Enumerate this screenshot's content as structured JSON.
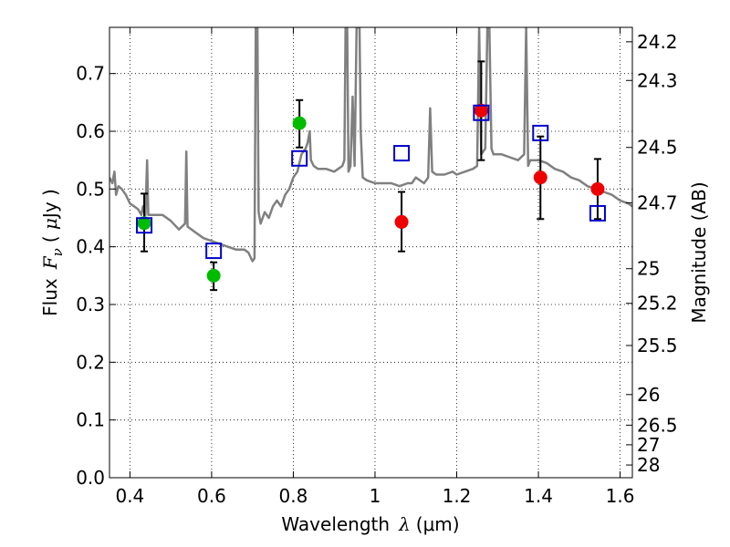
{
  "chart_data": {
    "type": "scatter",
    "xlabel": {
      "text": "Wavelength",
      "symbol": "λ",
      "unit": "(μm)"
    },
    "ylabel": {
      "text": "Flux",
      "symbol": "F",
      "subscript": "ν",
      "unit_open": "( ",
      "unit_mu": "μ",
      "unit_rest": "Jy )"
    },
    "ylabel_right": "Magnitude (AB)",
    "xlim": [
      0.35,
      1.63
    ],
    "ylim": [
      0.0,
      0.78
    ],
    "x_ticks": [
      {
        "value": 0.4,
        "label": "0.4"
      },
      {
        "value": 0.6,
        "label": "0.6"
      },
      {
        "value": 0.8,
        "label": "0.8"
      },
      {
        "value": 1.0,
        "label": "1"
      },
      {
        "value": 1.2,
        "label": "1.2"
      },
      {
        "value": 1.4,
        "label": "1.4"
      },
      {
        "value": 1.6,
        "label": "1.6"
      }
    ],
    "y_ticks": [
      {
        "value": 0.0,
        "label": "0.0"
      },
      {
        "value": 0.1,
        "label": "0.1"
      },
      {
        "value": 0.2,
        "label": "0.2"
      },
      {
        "value": 0.3,
        "label": "0.3"
      },
      {
        "value": 0.4,
        "label": "0.4"
      },
      {
        "value": 0.5,
        "label": "0.5"
      },
      {
        "value": 0.6,
        "label": "0.6"
      },
      {
        "value": 0.7,
        "label": "0.7"
      }
    ],
    "right_ticks": [
      {
        "flux": 0.755,
        "label": "24.2"
      },
      {
        "flux": 0.688,
        "label": "24.3"
      },
      {
        "flux": 0.572,
        "label": "24.5"
      },
      {
        "flux": 0.476,
        "label": "24.7"
      },
      {
        "flux": 0.362,
        "label": "25"
      },
      {
        "flux": 0.302,
        "label": "25.2"
      },
      {
        "flux": 0.229,
        "label": "25.5"
      },
      {
        "flux": 0.144,
        "label": "26"
      },
      {
        "flux": 0.091,
        "label": "26.5"
      },
      {
        "flux": 0.057,
        "label": "27"
      },
      {
        "flux": 0.022,
        "label": "28"
      }
    ],
    "grid": true,
    "series": [
      {
        "marker": "circle",
        "color": "#00bb00",
        "points": [
          {
            "x": 0.435,
            "y": 0.441,
            "err_lo": 0.049,
            "err_hi": 0.051
          },
          {
            "x": 0.605,
            "y": 0.35,
            "err_lo": 0.025,
            "err_hi": 0.023
          },
          {
            "x": 0.815,
            "y": 0.614,
            "err_lo": 0.042,
            "err_hi": 0.04
          }
        ]
      },
      {
        "marker": "circle",
        "color": "#ee0000",
        "points": [
          {
            "x": 1.065,
            "y": 0.443,
            "err_lo": 0.051,
            "err_hi": 0.052
          },
          {
            "x": 1.26,
            "y": 0.636,
            "err_lo": 0.086,
            "err_hi": 0.085
          },
          {
            "x": 1.405,
            "y": 0.52,
            "err_lo": 0.072,
            "err_hi": 0.071
          },
          {
            "x": 1.545,
            "y": 0.5,
            "err_lo": 0.052,
            "err_hi": 0.052
          }
        ]
      },
      {
        "marker": "square-open",
        "color": "#0000cc",
        "points": [
          {
            "x": 0.435,
            "y": 0.437
          },
          {
            "x": 0.605,
            "y": 0.393
          },
          {
            "x": 0.815,
            "y": 0.553
          },
          {
            "x": 1.065,
            "y": 0.562
          },
          {
            "x": 1.26,
            "y": 0.632
          },
          {
            "x": 1.405,
            "y": 0.597
          },
          {
            "x": 1.545,
            "y": 0.458
          }
        ]
      }
    ],
    "model_spectrum": {
      "color": "#808080",
      "points": [
        [
          0.35,
          0.52
        ],
        [
          0.357,
          0.51
        ],
        [
          0.362,
          0.53
        ],
        [
          0.366,
          0.49
        ],
        [
          0.372,
          0.505
        ],
        [
          0.38,
          0.5
        ],
        [
          0.39,
          0.49
        ],
        [
          0.4,
          0.475
        ],
        [
          0.41,
          0.47
        ],
        [
          0.42,
          0.465
        ],
        [
          0.428,
          0.455
        ],
        [
          0.432,
          0.47
        ],
        [
          0.435,
          0.46
        ],
        [
          0.438,
          0.455
        ],
        [
          0.442,
          0.55
        ],
        [
          0.445,
          0.455
        ],
        [
          0.46,
          0.455
        ],
        [
          0.48,
          0.455
        ],
        [
          0.5,
          0.445
        ],
        [
          0.52,
          0.43
        ],
        [
          0.535,
          0.44
        ],
        [
          0.538,
          0.565
        ],
        [
          0.541,
          0.435
        ],
        [
          0.56,
          0.425
        ],
        [
          0.58,
          0.415
        ],
        [
          0.6,
          0.41
        ],
        [
          0.62,
          0.405
        ],
        [
          0.64,
          0.4
        ],
        [
          0.66,
          0.395
        ],
        [
          0.68,
          0.395
        ],
        [
          0.69,
          0.39
        ],
        [
          0.7,
          0.375
        ],
        [
          0.705,
          0.38
        ],
        [
          0.708,
          0.78
        ],
        [
          0.712,
          0.78
        ],
        [
          0.715,
          0.46
        ],
        [
          0.72,
          0.44
        ],
        [
          0.73,
          0.46
        ],
        [
          0.74,
          0.45
        ],
        [
          0.75,
          0.47
        ],
        [
          0.76,
          0.48
        ],
        [
          0.77,
          0.47
        ],
        [
          0.78,
          0.49
        ],
        [
          0.79,
          0.5
        ],
        [
          0.8,
          0.52
        ],
        [
          0.81,
          0.53
        ],
        [
          0.82,
          0.56
        ],
        [
          0.83,
          0.57
        ],
        [
          0.835,
          0.58
        ],
        [
          0.84,
          0.6
        ],
        [
          0.843,
          0.55
        ],
        [
          0.85,
          0.54
        ],
        [
          0.86,
          0.535
        ],
        [
          0.88,
          0.535
        ],
        [
          0.9,
          0.53
        ],
        [
          0.91,
          0.535
        ],
        [
          0.92,
          0.54
        ],
        [
          0.925,
          0.55
        ],
        [
          0.928,
          0.78
        ],
        [
          0.932,
          0.78
        ],
        [
          0.935,
          0.53
        ],
        [
          0.94,
          0.54
        ],
        [
          0.945,
          0.66
        ],
        [
          0.95,
          0.54
        ],
        [
          0.955,
          0.78
        ],
        [
          0.962,
          0.78
        ],
        [
          0.965,
          0.6
        ],
        [
          0.97,
          0.52
        ],
        [
          0.98,
          0.515
        ],
        [
          1.0,
          0.51
        ],
        [
          1.02,
          0.51
        ],
        [
          1.04,
          0.51
        ],
        [
          1.06,
          0.505
        ],
        [
          1.08,
          0.51
        ],
        [
          1.09,
          0.51
        ],
        [
          1.1,
          0.52
        ],
        [
          1.11,
          0.515
        ],
        [
          1.12,
          0.51
        ],
        [
          1.13,
          0.52
        ],
        [
          1.135,
          0.64
        ],
        [
          1.14,
          0.53
        ],
        [
          1.15,
          0.525
        ],
        [
          1.17,
          0.525
        ],
        [
          1.19,
          0.53
        ],
        [
          1.2,
          0.525
        ],
        [
          1.22,
          0.53
        ],
        [
          1.24,
          0.535
        ],
        [
          1.25,
          0.54
        ],
        [
          1.255,
          0.78
        ],
        [
          1.26,
          0.56
        ],
        [
          1.27,
          0.57
        ],
        [
          1.275,
          0.78
        ],
        [
          1.28,
          0.78
        ],
        [
          1.285,
          0.57
        ],
        [
          1.29,
          0.56
        ],
        [
          1.31,
          0.56
        ],
        [
          1.33,
          0.555
        ],
        [
          1.35,
          0.55
        ],
        [
          1.365,
          0.56
        ],
        [
          1.37,
          0.78
        ],
        [
          1.375,
          0.54
        ],
        [
          1.38,
          0.55
        ],
        [
          1.4,
          0.55
        ],
        [
          1.42,
          0.545
        ],
        [
          1.44,
          0.535
        ],
        [
          1.46,
          0.53
        ],
        [
          1.48,
          0.52
        ],
        [
          1.5,
          0.515
        ],
        [
          1.52,
          0.505
        ],
        [
          1.54,
          0.5
        ],
        [
          1.56,
          0.495
        ],
        [
          1.58,
          0.49
        ],
        [
          1.6,
          0.48
        ],
        [
          1.62,
          0.475
        ],
        [
          1.63,
          0.47
        ]
      ]
    }
  }
}
